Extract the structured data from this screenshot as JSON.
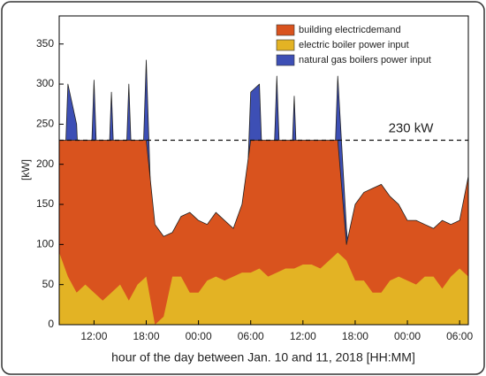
{
  "chart_data": {
    "type": "area",
    "x_label": "hour of the day between Jan. 10 and 11, 2018 [HH:MM]",
    "y_label": "[kW]",
    "x": [
      8,
      9,
      10,
      11,
      12,
      13,
      14,
      15,
      16,
      17,
      18,
      19,
      20,
      21,
      22,
      23,
      24,
      25,
      26,
      27,
      28,
      29,
      30,
      31,
      32,
      33,
      34,
      35,
      36,
      37,
      38,
      39,
      40,
      41,
      42,
      43,
      44,
      45,
      46,
      47,
      48,
      49,
      50,
      51,
      52,
      53,
      54,
      55
    ],
    "series": [
      {
        "name": "natural gas boilers power input",
        "color": "#3d4fb5",
        "values": [
          0,
          300,
          250,
          0,
          305,
          0,
          290,
          0,
          300,
          0,
          330,
          0,
          0,
          0,
          0,
          0,
          0,
          0,
          0,
          0,
          0,
          0,
          290,
          300,
          0,
          310,
          0,
          285,
          0,
          0,
          0,
          0,
          310,
          120,
          0,
          0,
          0,
          0,
          0,
          0,
          0,
          0,
          0,
          0,
          0,
          0,
          0,
          0
        ]
      },
      {
        "name": "building electricdemand",
        "color": "#d9531e",
        "values": [
          230,
          230,
          230,
          230,
          230,
          230,
          230,
          230,
          230,
          230,
          230,
          125,
          110,
          115,
          135,
          140,
          130,
          125,
          140,
          130,
          120,
          150,
          230,
          230,
          230,
          230,
          230,
          230,
          230,
          230,
          230,
          230,
          230,
          100,
          150,
          165,
          170,
          175,
          160,
          150,
          130,
          130,
          125,
          120,
          130,
          125,
          130,
          185
        ]
      },
      {
        "name": "electric boiler power input",
        "color": "#e3b324",
        "values": [
          90,
          60,
          40,
          50,
          40,
          30,
          40,
          50,
          30,
          50,
          60,
          0,
          10,
          60,
          60,
          40,
          40,
          55,
          60,
          55,
          60,
          65,
          65,
          70,
          60,
          65,
          70,
          70,
          75,
          75,
          70,
          80,
          90,
          80,
          55,
          55,
          40,
          40,
          55,
          60,
          55,
          50,
          60,
          60,
          45,
          60,
          70,
          60
        ]
      }
    ],
    "legend_order": [
      1,
      2,
      0
    ],
    "reference_line": {
      "value": 230,
      "label": "230 kW"
    },
    "xlim": [
      8,
      55
    ],
    "xticks": [
      {
        "value": 12,
        "label": "12:00"
      },
      {
        "value": 18,
        "label": "18:00"
      },
      {
        "value": 24,
        "label": "00:00"
      },
      {
        "value": 30,
        "label": "06:00"
      },
      {
        "value": 36,
        "label": "12:00"
      },
      {
        "value": 42,
        "label": "18:00"
      },
      {
        "value": 48,
        "label": "00:00"
      },
      {
        "value": 54,
        "label": "06:00"
      }
    ],
    "ylim": [
      0,
      385
    ],
    "yticks": [
      0,
      50,
      100,
      150,
      200,
      250,
      300,
      350
    ]
  }
}
